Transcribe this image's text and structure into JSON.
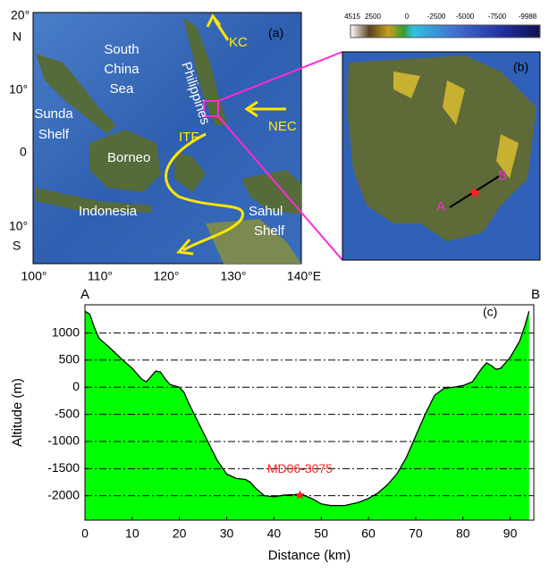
{
  "colorbar": {
    "labels": [
      "4515",
      "2500",
      "0",
      "-2500",
      "-5000",
      "-7500",
      "-9988"
    ]
  },
  "map_a": {
    "panel": "(a)",
    "lat_labels": [
      "20°",
      "N",
      "10°",
      "0",
      "10°",
      "S"
    ],
    "lon_labels": [
      "100°",
      "110°",
      "120°",
      "130°",
      "140°E"
    ],
    "labels": {
      "kc": "KC",
      "scs": [
        "South",
        "China",
        "Sea"
      ],
      "philippines": "Philippines",
      "nec": "NEC",
      "sunda": [
        "Sunda",
        "Shelf"
      ],
      "itf": "ITF",
      "borneo": "Borneo",
      "indonesia": "Indonesia",
      "sahul": [
        "Sahul",
        "Shelf"
      ]
    }
  },
  "map_b": {
    "panel": "(b)",
    "a": "A",
    "b": "B"
  },
  "chart_data": {
    "type": "area",
    "title": "(c)",
    "start_label": "A",
    "end_label": "B",
    "x_label": "Distance (km)",
    "y_label": "Altitude (m)",
    "x": [
      0,
      1,
      2,
      3,
      5,
      8,
      10,
      12,
      13,
      14,
      15,
      16,
      17,
      18,
      20,
      21,
      22,
      24,
      26,
      28,
      30,
      32,
      34,
      35,
      36,
      38,
      40,
      42,
      44,
      46,
      48,
      50,
      52,
      55,
      58,
      60,
      62,
      64,
      66,
      68,
      70,
      72,
      74,
      76,
      78,
      80,
      82,
      84,
      85,
      86,
      87,
      88,
      90,
      92,
      93,
      94
    ],
    "values": [
      1400,
      1350,
      1100,
      900,
      750,
      500,
      350,
      150,
      100,
      200,
      300,
      280,
      150,
      50,
      0,
      -100,
      -300,
      -650,
      -1000,
      -1350,
      -1600,
      -1680,
      -1700,
      -1750,
      -1850,
      -2000,
      -2020,
      -1990,
      -1980,
      -1980,
      -2050,
      -2150,
      -2180,
      -2180,
      -2120,
      -2050,
      -1950,
      -1800,
      -1600,
      -1300,
      -900,
      -500,
      -150,
      -20,
      0,
      30,
      100,
      350,
      450,
      400,
      330,
      350,
      550,
      850,
      1100,
      1400
    ],
    "color": "#00ff00",
    "marker": {
      "label": "MD06-3075",
      "x": 45.5,
      "y": -1980,
      "color": "#ff2020"
    },
    "xlim": [
      0,
      95
    ],
    "ylim": [
      -2450,
      1520
    ],
    "xticks": [
      0,
      10,
      20,
      30,
      40,
      50,
      60,
      70,
      80,
      90
    ],
    "yticks": [
      1000,
      500,
      0,
      -500,
      -1000,
      -1500,
      -2000
    ],
    "grid": true
  }
}
